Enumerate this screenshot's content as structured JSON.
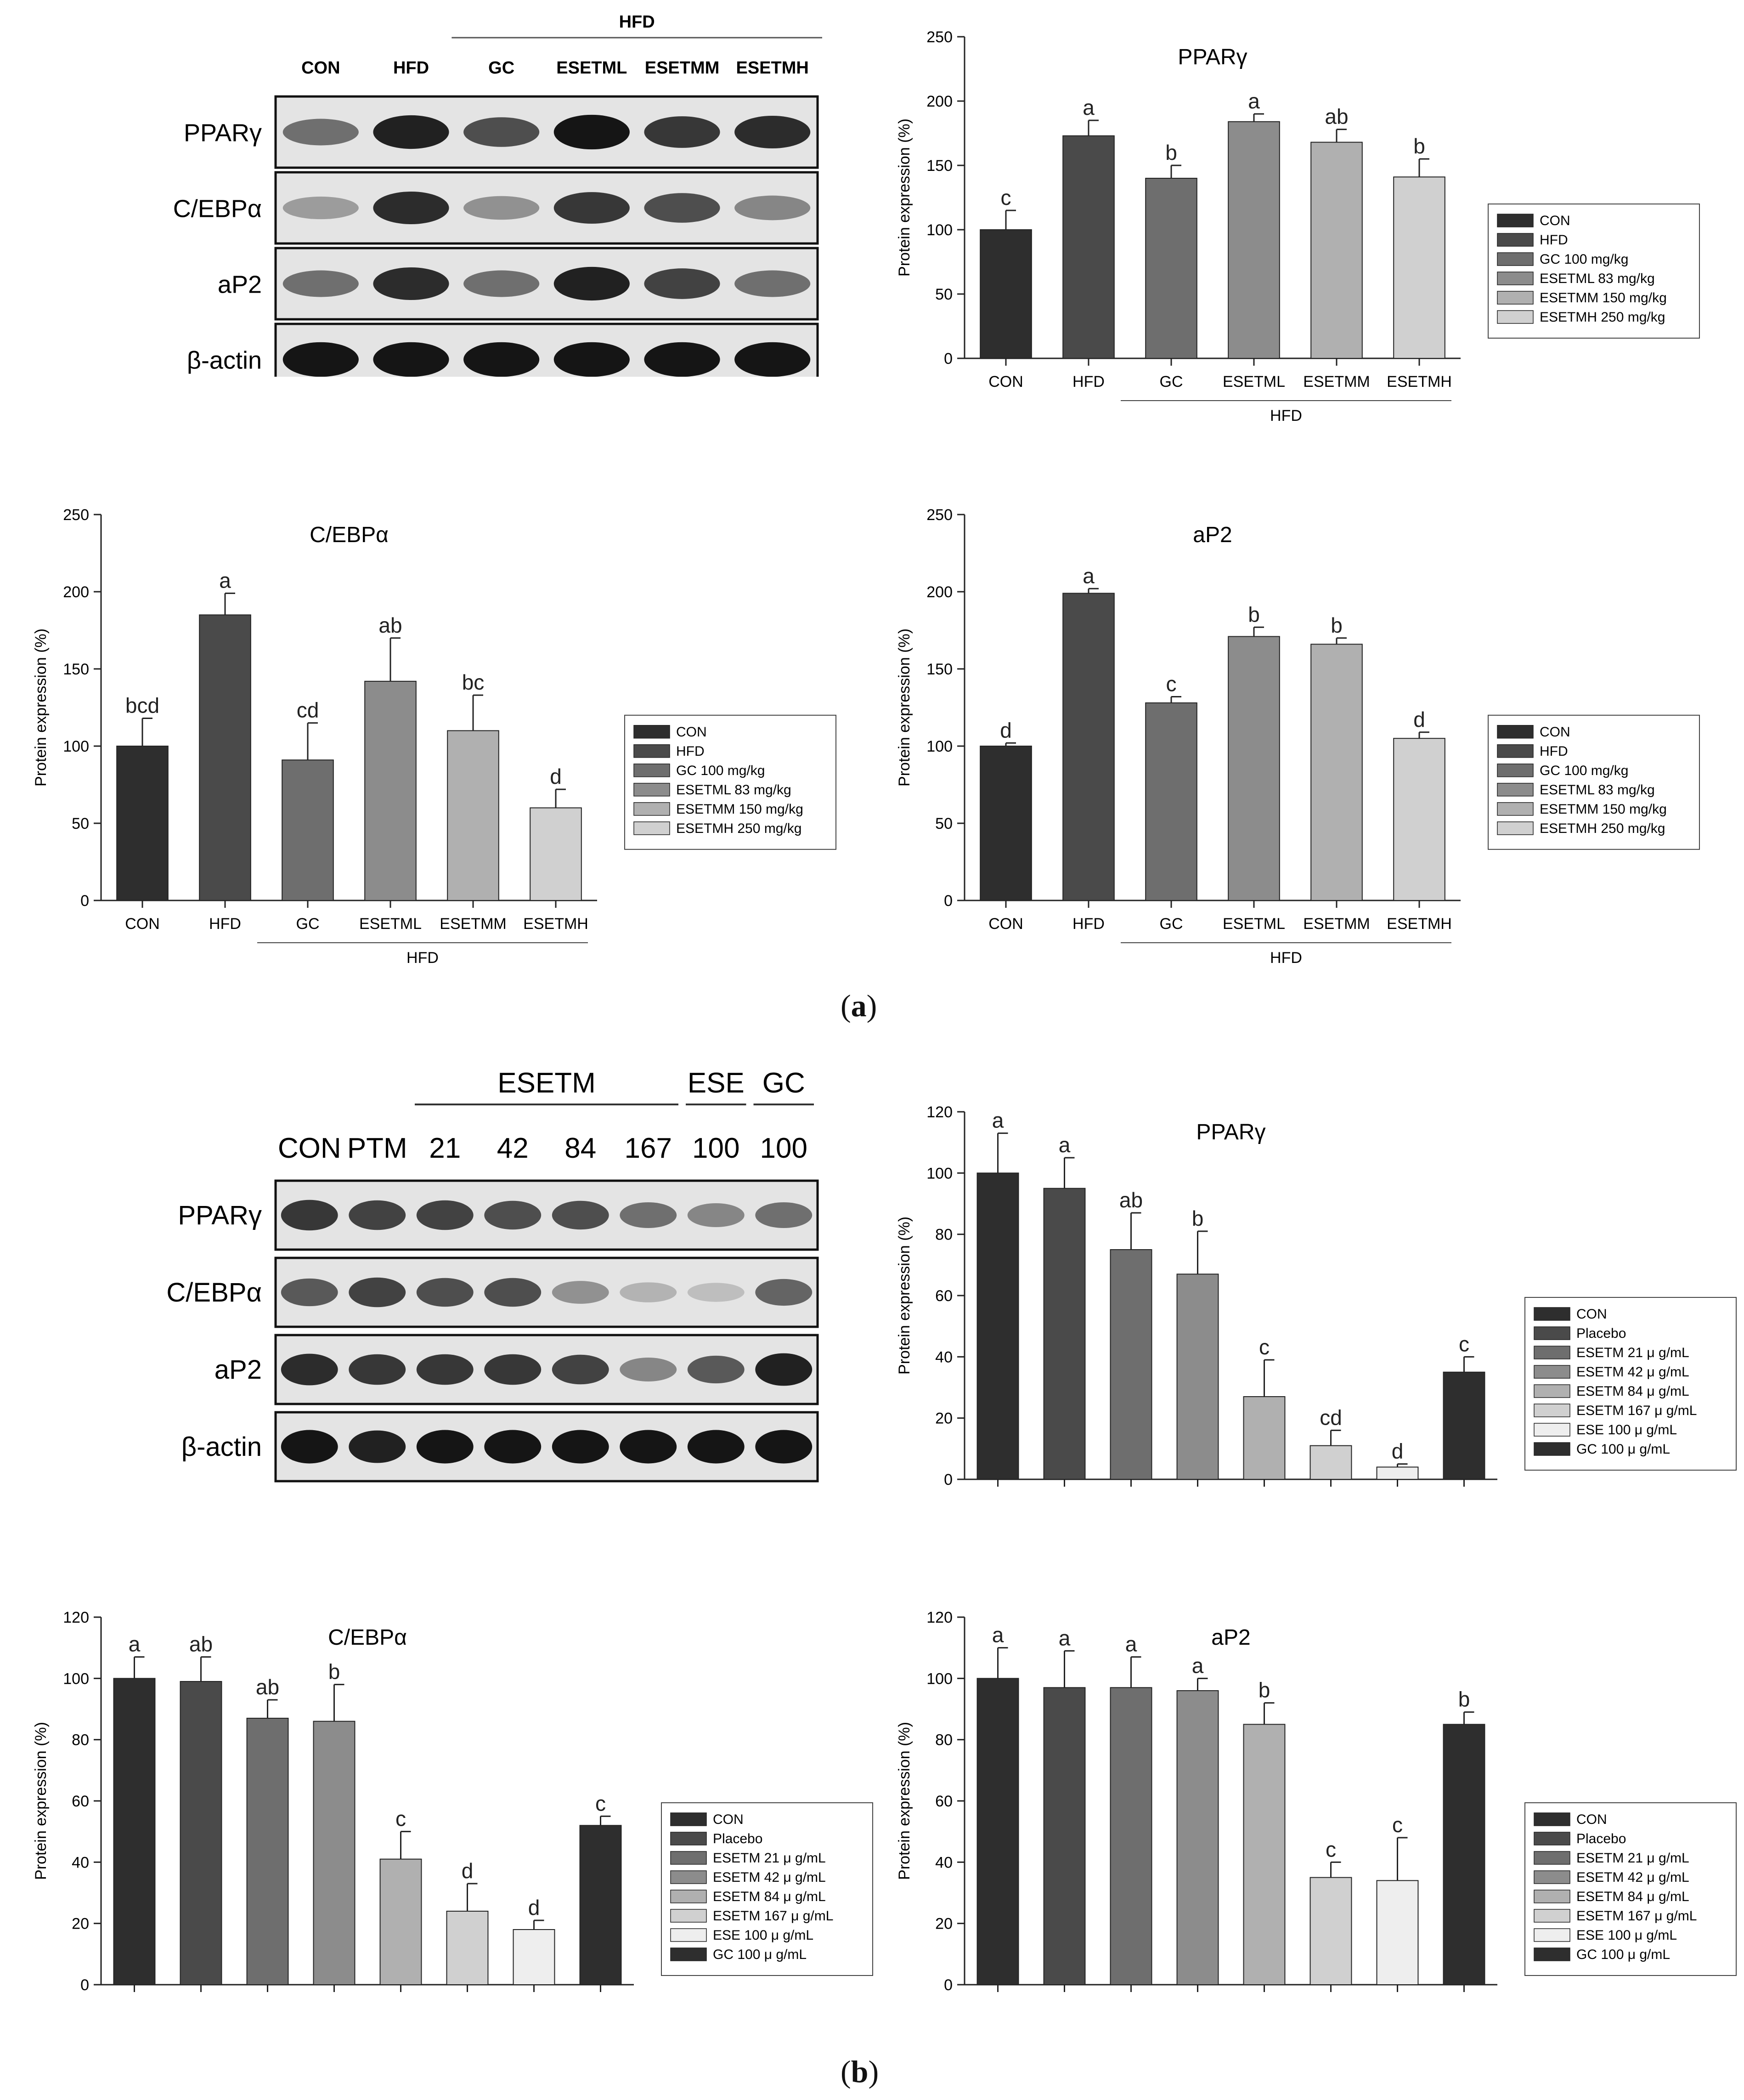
{
  "panels": [
    {
      "label": "a",
      "blot": {
        "top_group": "HFD",
        "lanes": [
          "CON",
          "HFD",
          "GC",
          "ESETML",
          "ESETMM",
          "ESETMH"
        ],
        "rows": [
          "PPARγ",
          "C/EBPα",
          "aP2",
          "β-actin"
        ],
        "intensities": [
          [
            0.55,
            0.9,
            0.7,
            0.95,
            0.8,
            0.85
          ],
          [
            0.35,
            0.85,
            0.4,
            0.8,
            0.7,
            0.45
          ],
          [
            0.55,
            0.85,
            0.55,
            0.9,
            0.75,
            0.55
          ],
          [
            0.95,
            0.95,
            0.95,
            0.95,
            0.95,
            0.95
          ]
        ]
      },
      "charts": [
        "a1",
        "a2",
        "a3"
      ]
    },
    {
      "label": "b",
      "blot": {
        "groups": [
          "ESETM",
          "ESE",
          "GC"
        ],
        "lanes": [
          "CON",
          "PTM",
          "21",
          "42",
          "84",
          "167",
          "100",
          "100"
        ],
        "rows": [
          "PPARγ",
          "C/EBPα",
          "aP2",
          "β-actin"
        ],
        "intensities": [
          [
            0.8,
            0.75,
            0.75,
            0.7,
            0.7,
            0.55,
            0.45,
            0.55
          ],
          [
            0.65,
            0.75,
            0.7,
            0.7,
            0.4,
            0.25,
            0.2,
            0.6
          ],
          [
            0.85,
            0.8,
            0.8,
            0.8,
            0.75,
            0.45,
            0.65,
            0.9
          ],
          [
            0.95,
            0.9,
            0.95,
            0.95,
            0.95,
            0.95,
            0.95,
            0.95
          ]
        ]
      },
      "charts": [
        "b0",
        "b1",
        "b2"
      ]
    }
  ],
  "chart_data": [
    {
      "id": "a1",
      "type": "bar",
      "title": "PPARγ",
      "ylabel": "Protein expression (%)",
      "ylim": [
        0,
        250
      ],
      "yticks": [
        0,
        50,
        100,
        150,
        200,
        250
      ],
      "categories": [
        "CON",
        "HFD",
        "GC",
        "ESETML",
        "ESETMM",
        "ESETMH"
      ],
      "values": [
        100,
        173,
        140,
        184,
        168,
        141
      ],
      "errors": [
        15,
        12,
        10,
        6,
        10,
        14
      ],
      "letters": [
        "c",
        "a",
        "b",
        "a",
        "ab",
        "b"
      ],
      "colors": [
        "#2e2e2e",
        "#4a4a4a",
        "#6e6e6e",
        "#8c8c8c",
        "#b0b0b0",
        "#d0d0d0"
      ],
      "group_label": "HFD",
      "legend": [
        "CON",
        "HFD",
        "GC 100 mg/kg",
        "ESETML 83 mg/kg",
        "ESETMM 150 mg/kg",
        "ESETMH 250 mg/kg"
      ]
    },
    {
      "id": "a2",
      "type": "bar",
      "title": "C/EBPα",
      "ylabel": "Protein expression (%)",
      "ylim": [
        0,
        250
      ],
      "yticks": [
        0,
        50,
        100,
        150,
        200,
        250
      ],
      "categories": [
        "CON",
        "HFD",
        "GC",
        "ESETML",
        "ESETMM",
        "ESETMH"
      ],
      "values": [
        100,
        185,
        91,
        142,
        110,
        60
      ],
      "errors": [
        18,
        14,
        24,
        28,
        23,
        12
      ],
      "letters": [
        "bcd",
        "a",
        "cd",
        "ab",
        "bc",
        "d"
      ],
      "colors": [
        "#2e2e2e",
        "#4a4a4a",
        "#6e6e6e",
        "#8c8c8c",
        "#b0b0b0",
        "#d0d0d0"
      ],
      "group_label": "HFD",
      "legend": [
        "CON",
        "HFD",
        "GC 100 mg/kg",
        "ESETML 83 mg/kg",
        "ESETMM 150 mg/kg",
        "ESETMH 250 mg/kg"
      ]
    },
    {
      "id": "a3",
      "type": "bar",
      "title": "aP2",
      "ylabel": "Protein expression (%)",
      "ylim": [
        0,
        250
      ],
      "yticks": [
        0,
        50,
        100,
        150,
        200,
        250
      ],
      "categories": [
        "CON",
        "HFD",
        "GC",
        "ESETML",
        "ESETMM",
        "ESETMH"
      ],
      "values": [
        100,
        199,
        128,
        171,
        166,
        105
      ],
      "errors": [
        2,
        3,
        4,
        6,
        4,
        4
      ],
      "letters": [
        "d",
        "a",
        "c",
        "b",
        "b",
        "d"
      ],
      "colors": [
        "#2e2e2e",
        "#4a4a4a",
        "#6e6e6e",
        "#8c8c8c",
        "#b0b0b0",
        "#d0d0d0"
      ],
      "group_label": "HFD",
      "legend": [
        "CON",
        "HFD",
        "GC 100 mg/kg",
        "ESETML 83 mg/kg",
        "ESETMM 150 mg/kg",
        "ESETMH 250 mg/kg"
      ]
    },
    {
      "id": "b0",
      "type": "bar",
      "title": "PPARγ",
      "ylabel": "Protein expression (%)",
      "ylim": [
        0,
        120
      ],
      "yticks": [
        0,
        20,
        40,
        60,
        80,
        100,
        120
      ],
      "categories": [
        "CON",
        "Placebo",
        "ESETM 21",
        "ESETM 42",
        "ESETM 84",
        "ESETM 167",
        "ESE 100",
        "GC 100"
      ],
      "values": [
        100,
        95,
        75,
        67,
        27,
        11,
        4,
        35
      ],
      "errors": [
        13,
        10,
        12,
        14,
        12,
        5,
        1,
        5
      ],
      "letters": [
        "a",
        "a",
        "ab",
        "b",
        "c",
        "cd",
        "d",
        "c"
      ],
      "colors": [
        "#2e2e2e",
        "#4a4a4a",
        "#6e6e6e",
        "#8c8c8c",
        "#b0b0b0",
        "#d0d0d0",
        "#eeeeee",
        "#2e2e2e"
      ],
      "legend": [
        "CON",
        "Placebo",
        "ESETM 21 μ g/mL",
        "ESETM 42 μ g/mL",
        "ESETM 84 μ g/mL",
        "ESETM 167 μ g/mL",
        "ESE 100 μ g/mL",
        "GC 100 μ g/mL"
      ]
    },
    {
      "id": "b1",
      "type": "bar",
      "title": "C/EBPα",
      "ylabel": "Protein expression (%)",
      "ylim": [
        0,
        120
      ],
      "yticks": [
        0,
        20,
        40,
        60,
        80,
        100,
        120
      ],
      "categories": [
        "CON",
        "Placebo",
        "ESETM 21",
        "ESETM 42",
        "ESETM 84",
        "ESETM 167",
        "ESE 100",
        "GC 100"
      ],
      "values": [
        100,
        99,
        87,
        86,
        41,
        24,
        18,
        52
      ],
      "errors": [
        7,
        8,
        6,
        12,
        9,
        9,
        3,
        3
      ],
      "letters": [
        "a",
        "ab",
        "ab",
        "b",
        "c",
        "d",
        "d",
        "c"
      ],
      "colors": [
        "#2e2e2e",
        "#4a4a4a",
        "#6e6e6e",
        "#8c8c8c",
        "#b0b0b0",
        "#d0d0d0",
        "#eeeeee",
        "#2e2e2e"
      ],
      "legend": [
        "CON",
        "Placebo",
        "ESETM 21 μ g/mL",
        "ESETM 42 μ g/mL",
        "ESETM 84 μ g/mL",
        "ESETM 167 μ g/mL",
        "ESE 100 μ g/mL",
        "GC 100 μ g/mL"
      ]
    },
    {
      "id": "b2",
      "type": "bar",
      "title": "aP2",
      "ylabel": "Protein expression (%)",
      "ylim": [
        0,
        120
      ],
      "yticks": [
        0,
        20,
        40,
        60,
        80,
        100,
        120
      ],
      "categories": [
        "CON",
        "Placebo",
        "ESETM 21",
        "ESETM 42",
        "ESETM 84",
        "ESETM 167",
        "ESE 100",
        "GC 100"
      ],
      "values": [
        100,
        97,
        97,
        96,
        85,
        35,
        34,
        85
      ],
      "errors": [
        10,
        12,
        10,
        4,
        7,
        5,
        14,
        4
      ],
      "letters": [
        "a",
        "a",
        "a",
        "a",
        "b",
        "c",
        "c",
        "b"
      ],
      "colors": [
        "#2e2e2e",
        "#4a4a4a",
        "#6e6e6e",
        "#8c8c8c",
        "#b0b0b0",
        "#d0d0d0",
        "#eeeeee",
        "#2e2e2e"
      ],
      "legend": [
        "CON",
        "Placebo",
        "ESETM 21 μ g/mL",
        "ESETM 42 μ g/mL",
        "ESETM 84 μ g/mL",
        "ESETM 167 μ g/mL",
        "ESE 100 μ g/mL",
        "GC 100 μ g/mL"
      ]
    }
  ]
}
